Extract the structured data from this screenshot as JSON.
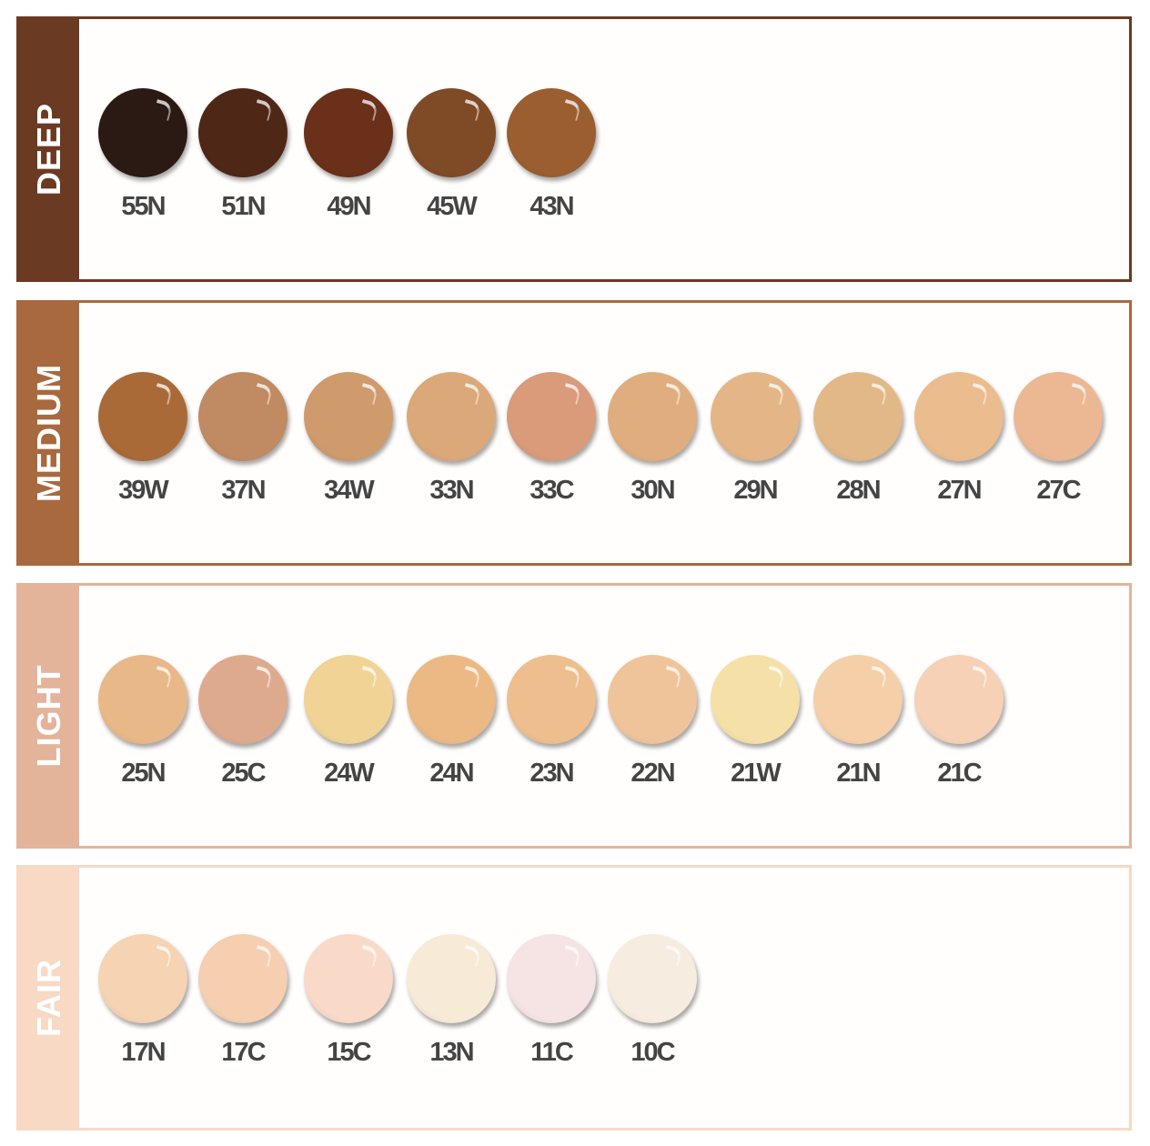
{
  "groups": [
    {
      "label": "DEEP",
      "color": "#6b3a22",
      "shades": [
        {
          "name": "55N",
          "color": "#2b1a14"
        },
        {
          "name": "51N",
          "color": "#4e2716"
        },
        {
          "name": "49N",
          "color": "#6a3019"
        },
        {
          "name": "45W",
          "color": "#7f4a26"
        },
        {
          "name": "43N",
          "color": "#9a5e30"
        }
      ]
    },
    {
      "label": "MEDIUM",
      "color": "#a8693f",
      "shades": [
        {
          "name": "39W",
          "color": "#a96a38"
        },
        {
          "name": "37N",
          "color": "#c08a62"
        },
        {
          "name": "34W",
          "color": "#cf9a6c"
        },
        {
          "name": "33N",
          "color": "#dba879"
        },
        {
          "name": "33C",
          "color": "#d99b7a"
        },
        {
          "name": "30N",
          "color": "#e0ae7e"
        },
        {
          "name": "29N",
          "color": "#e4b687"
        },
        {
          "name": "28N",
          "color": "#e3b887"
        },
        {
          "name": "27N",
          "color": "#ebbc8d"
        },
        {
          "name": "27C",
          "color": "#ebb893"
        }
      ]
    },
    {
      "label": "LIGHT",
      "color": "#e3b49a",
      "shades": [
        {
          "name": "25N",
          "color": "#e8b888"
        },
        {
          "name": "25C",
          "color": "#deaa8e"
        },
        {
          "name": "24W",
          "color": "#f1d396"
        },
        {
          "name": "24N",
          "color": "#ecb985"
        },
        {
          "name": "23N",
          "color": "#efbe8e"
        },
        {
          "name": "22N",
          "color": "#f0c49a"
        },
        {
          "name": "21W",
          "color": "#f5e0a8"
        },
        {
          "name": "21N",
          "color": "#f5cfa8"
        },
        {
          "name": "21C",
          "color": "#f6d1b6"
        }
      ]
    },
    {
      "label": "FAIR",
      "color": "#f7d9c4",
      "shades": [
        {
          "name": "17N",
          "color": "#f6d3b2"
        },
        {
          "name": "17C",
          "color": "#f5cfb0"
        },
        {
          "name": "15C",
          "color": "#f9dac8"
        },
        {
          "name": "13N",
          "color": "#f7ead7"
        },
        {
          "name": "11C",
          "color": "#f6e3e4"
        },
        {
          "name": "10C",
          "color": "#f7ece0"
        }
      ]
    }
  ]
}
